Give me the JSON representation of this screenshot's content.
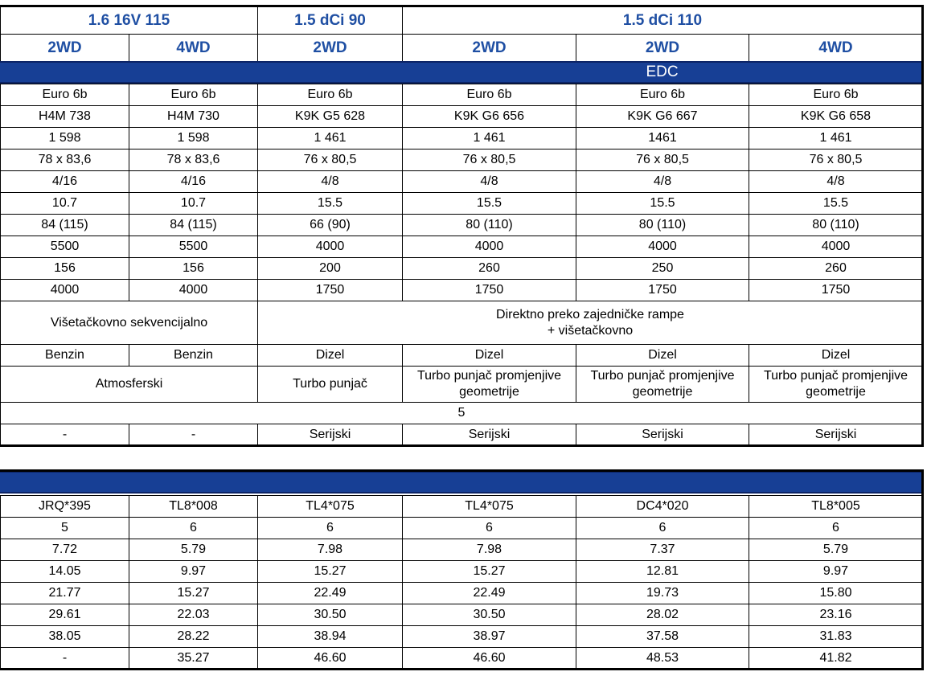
{
  "table1": {
    "header": [
      "1.6 16V 115",
      "1.5 dCi 90",
      "1.5 dCi 110"
    ],
    "drive": [
      "2WD",
      "4WD",
      "2WD",
      "2WD",
      "2WD",
      "4WD"
    ],
    "band_label": "EDC",
    "rows": [
      [
        "Euro 6b",
        "Euro 6b",
        "Euro 6b",
        "Euro 6b",
        "Euro 6b",
        "Euro 6b"
      ],
      [
        "H4M 738",
        "H4M 730",
        "K9K G5 628",
        "K9K G6 656",
        "K9K G6 667",
        "K9K G6 658"
      ],
      [
        "1 598",
        "1 598",
        "1 461",
        "1 461",
        "1461",
        "1 461"
      ],
      [
        "78 x 83,6",
        "78 x 83,6",
        "76 x 80,5",
        "76 x 80,5",
        "76 x 80,5",
        "76 x 80,5"
      ],
      [
        "4/16",
        "4/16",
        "4/8",
        "4/8",
        "4/8",
        "4/8"
      ],
      [
        "10.7",
        "10.7",
        "15.5",
        "15.5",
        "15.5",
        "15.5"
      ],
      [
        "84 (115)",
        "84 (115)",
        "66 (90)",
        "80 (110)",
        "80 (110)",
        "80 (110)"
      ],
      [
        "5500",
        "5500",
        "4000",
        "4000",
        "4000",
        "4000"
      ],
      [
        "156",
        "156",
        "200",
        "260",
        "250",
        "260"
      ],
      [
        "4000",
        "4000",
        "1750",
        "1750",
        "1750",
        "1750"
      ],
      [
        "Višetačkovno sekvencijalno",
        "Direktno preko zajedničke rampe\n+ višetačkovno"
      ],
      [
        "Benzin",
        "Benzin",
        "Dizel",
        "Dizel",
        "Dizel",
        "Dizel"
      ],
      [
        "Atmosferski",
        "Turbo punjač",
        "Turbo punjač promjenjive geometrije",
        "Turbo punjač promjenjive geometrije",
        "Turbo punjač promjenjive geometrije"
      ],
      [
        "5"
      ],
      [
        "-",
        "-",
        "Serijski",
        "Serijski",
        "Serijski",
        "Serijski"
      ]
    ]
  },
  "table2": {
    "rows": [
      [
        "JRQ*395",
        "TL8*008",
        "TL4*075",
        "TL4*075",
        "DC4*020",
        "TL8*005"
      ],
      [
        "5",
        "6",
        "6",
        "6",
        "6",
        "6"
      ],
      [
        "7.72",
        "5.79",
        "7.98",
        "7.98",
        "7.37",
        "5.79"
      ],
      [
        "14.05",
        "9.97",
        "15.27",
        "15.27",
        "12.81",
        "9.97"
      ],
      [
        "21.77",
        "15.27",
        "22.49",
        "22.49",
        "19.73",
        "15.80"
      ],
      [
        "29.61",
        "22.03",
        "30.50",
        "30.50",
        "28.02",
        "23.16"
      ],
      [
        "38.05",
        "28.22",
        "38.94",
        "38.97",
        "37.58",
        "31.83"
      ],
      [
        "-",
        "35.27",
        "46.60",
        "46.60",
        "48.53",
        "41.82"
      ]
    ]
  }
}
